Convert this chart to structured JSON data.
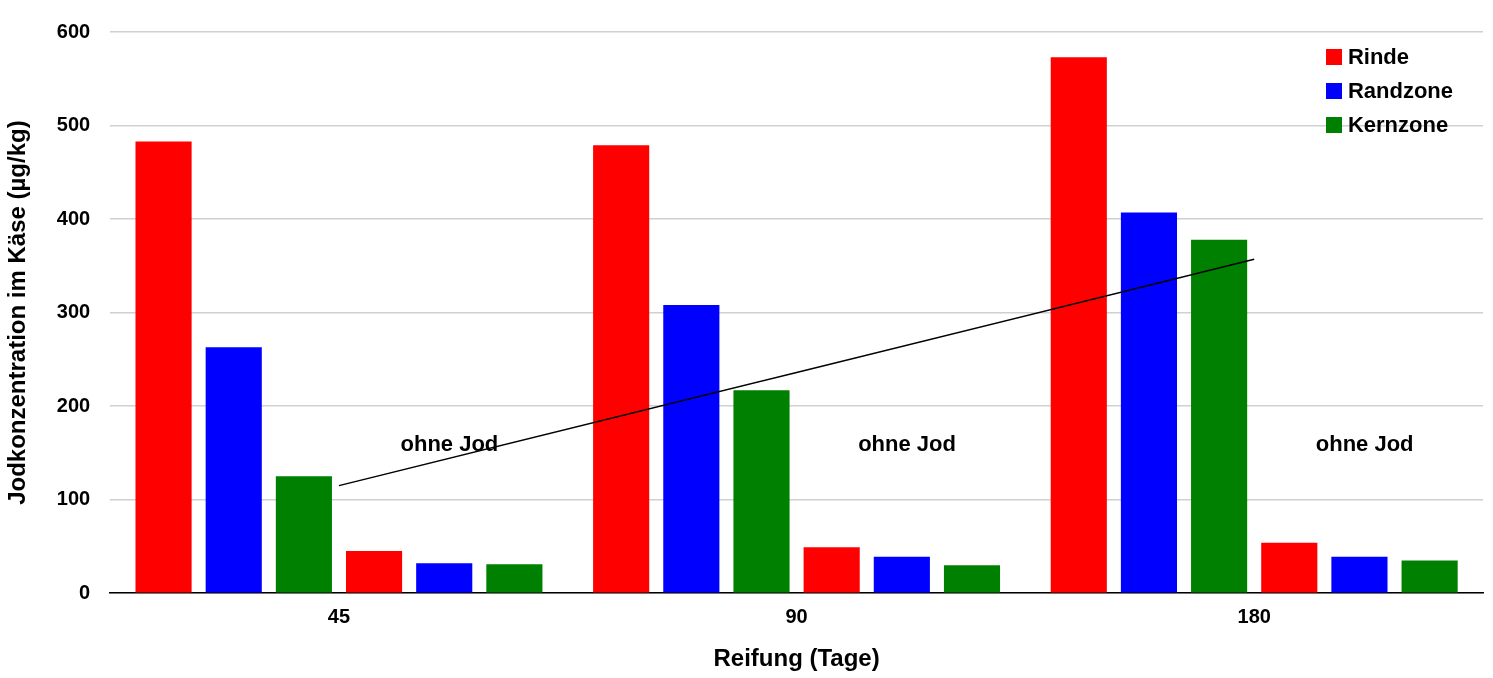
{
  "chart_data": {
    "type": "bar",
    "xlabel": "Reifung (Tage)",
    "ylabel": "Jodkonzentration im Käse (µg/kg)",
    "categories": [
      "45",
      "90",
      "180"
    ],
    "series": [
      {
        "name": "Rinde",
        "color": "#ff0000",
        "values": [
          483,
          479,
          573
        ]
      },
      {
        "name": "Randzone",
        "color": "#0000ff",
        "values": [
          263,
          308,
          407
        ]
      },
      {
        "name": "Kernzone",
        "color": "#008000",
        "values": [
          125,
          217,
          378
        ]
      },
      {
        "color": "#ff0000",
        "values": [
          45,
          49,
          54
        ]
      },
      {
        "color": "#0000ff",
        "values": [
          32,
          39,
          39
        ]
      },
      {
        "color": "#008000",
        "values": [
          31,
          30,
          35
        ]
      },
      {
        "type": "line",
        "color": "#000000",
        "values": [
          115,
          236,
          357
        ]
      }
    ],
    "ylim": [
      0,
      600
    ],
    "yticks": [
      0,
      100,
      200,
      300,
      400,
      500,
      600
    ],
    "grid": "y",
    "legend": "top right",
    "marker": "none",
    "annotations": [
      "ohne Jod",
      "ohne Jod",
      "ohne Jod"
    ]
  }
}
